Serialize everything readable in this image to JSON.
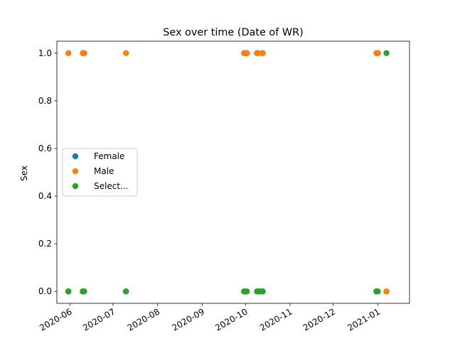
{
  "chart_data": {
    "type": "scatter",
    "title": "Sex over time (Date of WR)",
    "xlabel": "",
    "ylabel": "Sex",
    "x_axis_type": "date",
    "xlim": [
      "2020-05-23",
      "2021-01-23"
    ],
    "ylim": [
      -0.05,
      1.05
    ],
    "x_ticks": [
      "2020-06-01",
      "2020-07-01",
      "2020-08-01",
      "2020-09-01",
      "2020-10-01",
      "2020-11-01",
      "2020-12-01",
      "2021-01-01"
    ],
    "x_tick_labels": [
      "2020-06",
      "2020-07",
      "2020-08",
      "2020-09",
      "2020-10",
      "2020-11",
      "2020-12",
      "2021-01"
    ],
    "y_ticks": [
      0.0,
      0.2,
      0.4,
      0.6,
      0.8,
      1.0
    ],
    "y_tick_labels": [
      "0.0",
      "0.2",
      "0.4",
      "0.6",
      "0.8",
      "1.0"
    ],
    "grid": false,
    "legend_position": "center-left",
    "series": [
      {
        "name": "Female",
        "color": "#1f77b4",
        "points": [
          {
            "x": "2020-06-10",
            "y": 1
          },
          {
            "x": "2020-06-11",
            "y": 1
          },
          {
            "x": "2020-10-01",
            "y": 1
          },
          {
            "x": "2020-10-02",
            "y": 1
          },
          {
            "x": "2020-10-09",
            "y": 1
          },
          {
            "x": "2020-10-13",
            "y": 1
          },
          {
            "x": "2020-12-31",
            "y": 1
          },
          {
            "x": "2021-01-01",
            "y": 1
          },
          {
            "x": "2020-05-31",
            "y": 0
          },
          {
            "x": "2020-06-10",
            "y": 0
          },
          {
            "x": "2020-07-10",
            "y": 0
          },
          {
            "x": "2020-10-01",
            "y": 0
          },
          {
            "x": "2020-10-10",
            "y": 0
          },
          {
            "x": "2020-10-13",
            "y": 0
          },
          {
            "x": "2020-12-31",
            "y": 0
          },
          {
            "x": "2021-01-07",
            "y": 0
          }
        ]
      },
      {
        "name": "Male",
        "color": "#ff7f0e",
        "points": [
          {
            "x": "2020-05-31",
            "y": 1
          },
          {
            "x": "2020-06-10",
            "y": 1
          },
          {
            "x": "2020-06-11",
            "y": 1
          },
          {
            "x": "2020-07-10",
            "y": 1
          },
          {
            "x": "2020-09-30",
            "y": 1
          },
          {
            "x": "2020-10-01",
            "y": 1
          },
          {
            "x": "2020-10-02",
            "y": 1
          },
          {
            "x": "2020-10-09",
            "y": 1
          },
          {
            "x": "2020-10-10",
            "y": 1
          },
          {
            "x": "2020-10-13",
            "y": 1
          },
          {
            "x": "2020-12-31",
            "y": 1
          },
          {
            "x": "2021-01-01",
            "y": 1
          },
          {
            "x": "2020-05-31",
            "y": 0
          },
          {
            "x": "2020-06-10",
            "y": 0
          },
          {
            "x": "2020-10-01",
            "y": 0
          },
          {
            "x": "2021-01-07",
            "y": 0
          }
        ]
      },
      {
        "name": "Select...",
        "color": "#2ca02c",
        "points": [
          {
            "x": "2021-01-07",
            "y": 1
          },
          {
            "x": "2020-05-31",
            "y": 0
          },
          {
            "x": "2020-06-10",
            "y": 0
          },
          {
            "x": "2020-06-11",
            "y": 0
          },
          {
            "x": "2020-07-10",
            "y": 0
          },
          {
            "x": "2020-09-30",
            "y": 0
          },
          {
            "x": "2020-10-01",
            "y": 0
          },
          {
            "x": "2020-10-02",
            "y": 0
          },
          {
            "x": "2020-10-09",
            "y": 0
          },
          {
            "x": "2020-10-10",
            "y": 0
          },
          {
            "x": "2020-10-11",
            "y": 0
          },
          {
            "x": "2020-10-13",
            "y": 0
          },
          {
            "x": "2020-12-31",
            "y": 0
          },
          {
            "x": "2021-01-01",
            "y": 0
          }
        ]
      }
    ]
  }
}
